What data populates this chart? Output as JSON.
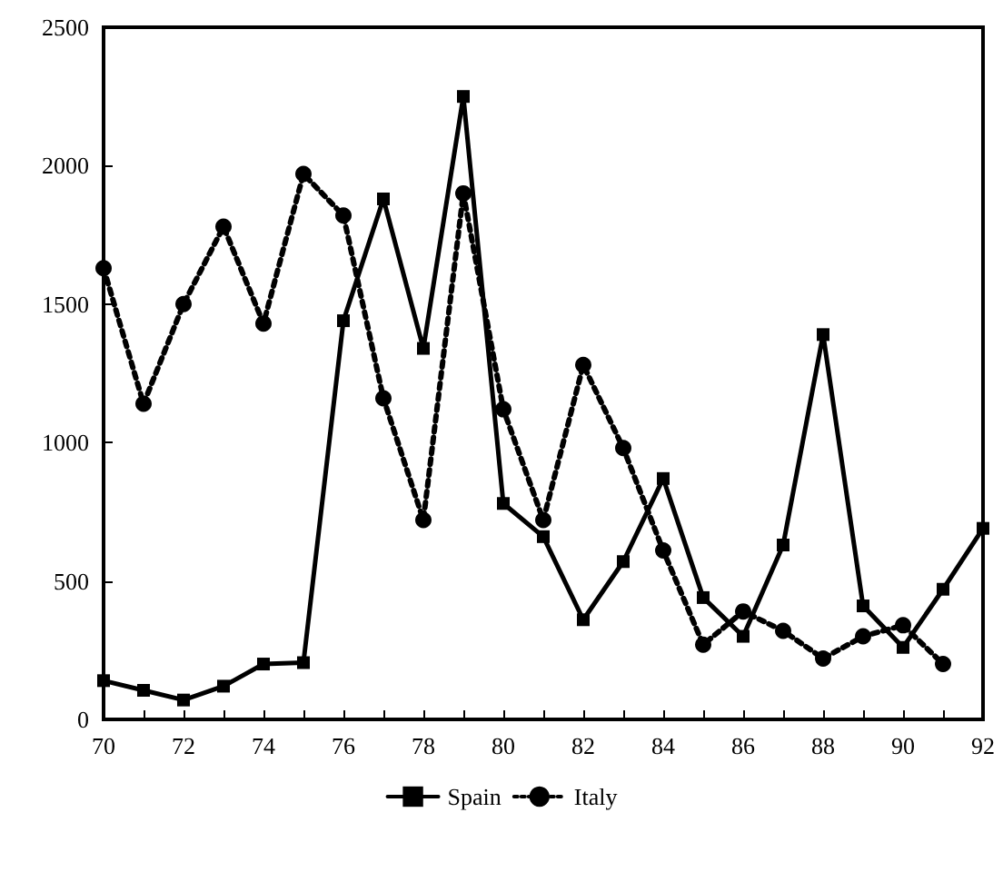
{
  "chart_data": {
    "type": "line",
    "x": [
      70,
      71,
      72,
      73,
      74,
      75,
      76,
      77,
      78,
      79,
      80,
      81,
      82,
      83,
      84,
      85,
      86,
      87,
      88,
      89,
      90,
      91,
      92
    ],
    "series": [
      {
        "name": "Spain",
        "color": "#000000",
        "marker": "square",
        "line_style": "solid",
        "values": [
          140,
          105,
          70,
          120,
          200,
          205,
          1440,
          1880,
          1340,
          2250,
          780,
          660,
          360,
          570,
          870,
          440,
          300,
          630,
          1390,
          410,
          260,
          470,
          690
        ]
      },
      {
        "name": "Italy",
        "color": "#000000",
        "marker": "circle",
        "line_style": "dotted",
        "values": [
          1630,
          1140,
          1500,
          1780,
          1430,
          1970,
          1820,
          1160,
          720,
          1900,
          1120,
          720,
          1280,
          980,
          610,
          270,
          390,
          320,
          220,
          300,
          340,
          200,
          null
        ]
      }
    ],
    "xlim": [
      70,
      92
    ],
    "xticks": [
      70,
      {
        "value": 71,
        "label": null
      },
      72,
      {
        "value": 73,
        "label": null
      },
      74,
      {
        "value": 75,
        "label": null
      },
      76,
      {
        "value": 77,
        "label": null
      },
      78,
      {
        "value": 79,
        "label": null
      },
      80,
      {
        "value": 81,
        "label": null
      },
      82,
      {
        "value": 83,
        "label": null
      },
      84,
      {
        "value": 85,
        "label": null
      },
      86,
      {
        "value": 87,
        "label": null
      },
      88,
      {
        "value": 89,
        "label": null
      },
      90,
      {
        "value": 91,
        "label": null
      },
      92
    ],
    "ylim": [
      0,
      2500
    ],
    "yticks": [
      0,
      500,
      1000,
      1500,
      2000,
      2500
    ],
    "grid": false,
    "legend": "bottom"
  }
}
